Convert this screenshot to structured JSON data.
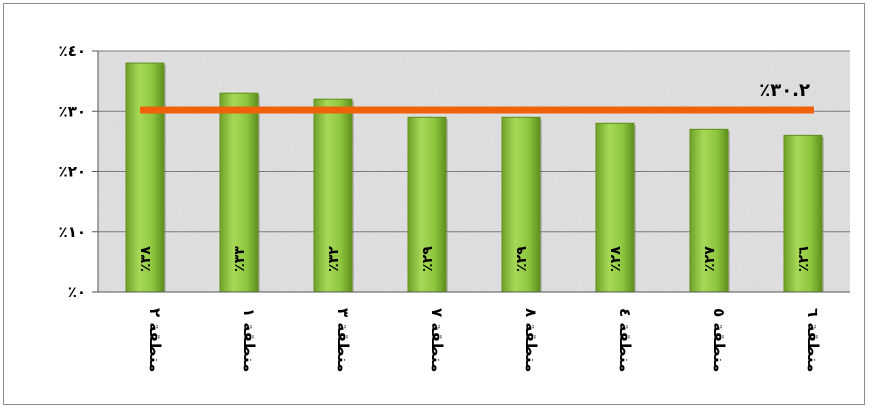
{
  "chart_data": {
    "type": "bar",
    "categories": [
      "منطقة ٢",
      "منطقة ١",
      "منطقة ٣",
      "منطقة ٧",
      "منطقة ٨",
      "منطقة ٤",
      "منطقة ٥",
      "منطقة ٦"
    ],
    "values": [
      38,
      33,
      32,
      29,
      29,
      28,
      27,
      26
    ],
    "value_labels": [
      "٪٣٨",
      "٪٣٣",
      "٪٣٢",
      "٪٢٩",
      "٪٢٩",
      "٪٢٨",
      "٪٢٧",
      "٪٢٦"
    ],
    "ylim": [
      0,
      40
    ],
    "yticks": [
      0,
      10,
      20,
      30,
      40
    ],
    "ytick_labels": [
      "٪٠",
      "٪١٠",
      "٪٢٠",
      "٪٣٠",
      "٪٤٠"
    ],
    "average": {
      "value": 30.2,
      "label": "٪٣٠.٢"
    },
    "title": "",
    "xlabel": "",
    "ylabel": "",
    "grid": true,
    "colors": {
      "bar": "#8dc63f",
      "bar_dark": "#5e8f1c",
      "average_line": "#f0620a",
      "plot_bg": "#e6e6e6"
    }
  }
}
